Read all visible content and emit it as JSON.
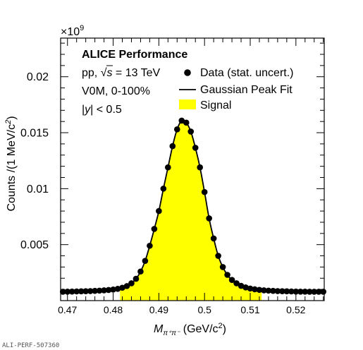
{
  "chart_data": {
    "type": "scatter",
    "exponent_label": "×10",
    "exponent_power": "9",
    "xlabel_var": "M",
    "xlabel_sub": "π⁺π⁻",
    "xlabel_unit": " (GeV/c",
    "xlabel_unit_sup": "2",
    "xlabel_close": ")",
    "ylabel": "Counts /(1 MeV/c",
    "ylabel_sup": "2",
    "ylabel_close": ")",
    "xlim": [
      0.4685,
      0.5262
    ],
    "ylim": [
      0.0,
      0.02345
    ],
    "x_ticks": [
      "0.47",
      "0.48",
      "0.49",
      "0.5",
      "0.51",
      "0.52"
    ],
    "y_ticks": [
      "0.005",
      "0.01",
      "0.015",
      "0.02"
    ],
    "text": {
      "experiment": "ALICE Performance",
      "system_prefix": "pp, ",
      "sqrt": "√",
      "s_var": "s",
      "energy": " = 13 TeV",
      "multiplicity": "V0M, 0-100%",
      "rapidity_prefix": "|",
      "rapidity_var": "y",
      "rapidity_suffix": "| < 0.5"
    },
    "legend": {
      "data": "Data (stat. uncert.)",
      "fit": "Gaussian Peak Fit",
      "signal": "Signal"
    },
    "footer": "ALI-PERF-507360",
    "signal_range": [
      0.4815,
      0.5125
    ],
    "colors": {
      "signal": "#ffff00",
      "marker": "#000000",
      "fit": "#000000"
    },
    "series": [
      {
        "x": [
          0.469,
          0.47,
          0.471,
          0.472,
          0.473,
          0.474,
          0.475,
          0.476,
          0.477,
          0.478,
          0.479,
          0.48,
          0.481,
          0.482,
          0.483,
          0.484,
          0.485,
          0.486,
          0.487,
          0.488,
          0.489,
          0.49,
          0.491,
          0.492,
          0.493,
          0.494,
          0.495,
          0.496,
          0.497,
          0.498,
          0.499,
          0.5,
          0.501,
          0.502,
          0.503,
          0.504,
          0.505,
          0.506,
          0.507,
          0.508,
          0.509,
          0.51,
          0.511,
          0.512,
          0.513,
          0.514,
          0.515,
          0.516,
          0.517,
          0.518,
          0.519,
          0.52,
          0.521,
          0.522,
          0.523,
          0.524,
          0.525,
          0.526
        ],
        "y": [
          0.00079,
          0.0008,
          0.00081,
          0.00082,
          0.00083,
          0.00084,
          0.00085,
          0.00087,
          0.00089,
          0.00092,
          0.00095,
          0.00099,
          0.00105,
          0.00115,
          0.0013,
          0.00155,
          0.00195,
          0.0026,
          0.00355,
          0.0049,
          0.0064,
          0.008,
          0.01,
          0.0119,
          0.0138,
          0.0153,
          0.01608,
          0.0159,
          0.0151,
          0.01365,
          0.0119,
          0.0097,
          0.00735,
          0.00555,
          0.004,
          0.003,
          0.0023,
          0.00185,
          0.00155,
          0.00132,
          0.00118,
          0.00108,
          0.00101,
          0.00096,
          0.00092,
          0.00089,
          0.00087,
          0.00085,
          0.00084,
          0.00083,
          0.00082,
          0.00081,
          0.0008,
          0.0008,
          0.00079,
          0.00079,
          0.00079,
          0.00079
        ]
      }
    ]
  }
}
